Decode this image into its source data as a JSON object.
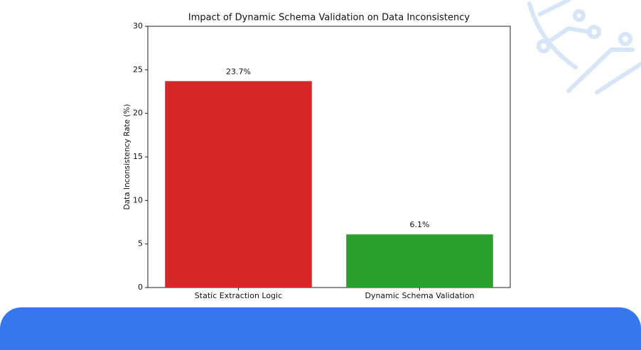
{
  "chart_data": {
    "type": "bar",
    "title": "Impact of Dynamic Schema Validation on Data Inconsistency",
    "ylabel": "Data Inconsistency Rate (%)",
    "categories": [
      "Static Extraction Logic",
      "Dynamic Schema Validation"
    ],
    "values": [
      23.7,
      6.1
    ],
    "value_labels": [
      "23.7%",
      "6.1%"
    ],
    "colors": [
      "#d62728",
      "#2ca02c"
    ],
    "ylim": [
      0,
      30
    ],
    "yticks": [
      0,
      5,
      10,
      15,
      20,
      25,
      30
    ],
    "grid": false
  }
}
